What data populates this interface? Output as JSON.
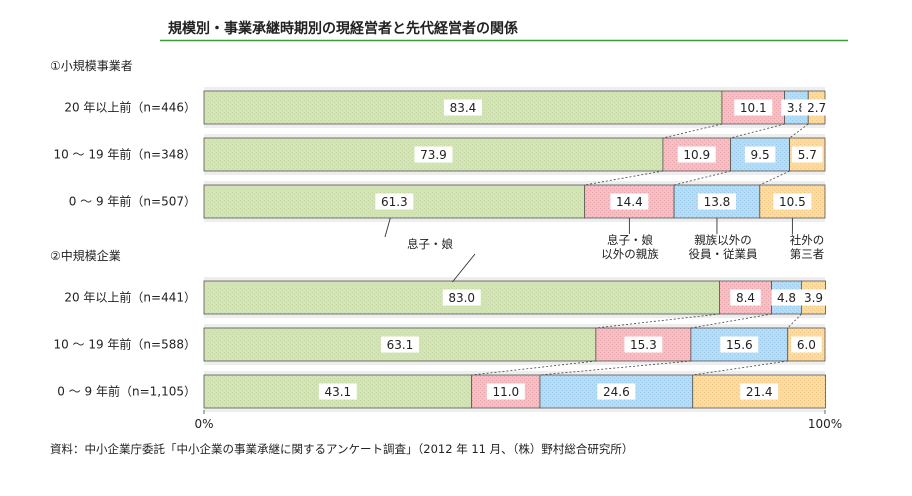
{
  "chart_data": {
    "type": "bar",
    "orientation": "horizontal",
    "stacked": true,
    "percent": true,
    "title": "規模別・事業承継時期別の現経営者と先代経営者の関係",
    "xlim": [
      0,
      100
    ],
    "x_ticks": [
      "0%",
      "100%"
    ],
    "series": [
      {
        "name": "息子・娘",
        "color": "#d4e4b8"
      },
      {
        "name": "息子・娘\n以外の親族",
        "color": "#f4c0c4"
      },
      {
        "name": "親族以外の\n役員・従業員",
        "color": "#b8dcf4"
      },
      {
        "name": "社外の\n第三者",
        "color": "#fcdca4"
      }
    ],
    "groups": [
      {
        "label": "①小規模事業者",
        "rows": [
          {
            "label": "20 年以上前（n=446）",
            "values": [
              83.4,
              10.1,
              3.8,
              2.7
            ],
            "value_labels": [
              "83.4",
              "10.1",
              "3.8",
              "2.7"
            ]
          },
          {
            "label": "10 ～ 19 年前（n=348）",
            "values": [
              73.9,
              10.9,
              9.5,
              5.7
            ],
            "value_labels": [
              "73.9",
              "10.9",
              "9.5",
              "5.7"
            ]
          },
          {
            "label": "0 ～ 9 年前（n=507）",
            "values": [
              61.3,
              14.4,
              13.8,
              10.5
            ],
            "value_labels": [
              "61.3",
              "14.4",
              "13.8",
              "10.5"
            ]
          }
        ]
      },
      {
        "label": "②中規模企業",
        "rows": [
          {
            "label": "20 年以上前（n=441）",
            "values": [
              83.0,
              8.4,
              4.8,
              3.9
            ],
            "value_labels": [
              "83.0",
              "8.4",
              "4.8",
              "3.9"
            ]
          },
          {
            "label": "10 ～ 19 年前（n=588）",
            "values": [
              63.1,
              15.3,
              15.6,
              6.0
            ],
            "value_labels": [
              "63.1",
              "15.3",
              "15.6",
              "6.0"
            ]
          },
          {
            "label": "0 ～ 9 年前（n=1,105）",
            "values": [
              43.1,
              11.0,
              24.6,
              21.4
            ],
            "value_labels": [
              "43.1",
              "11.0",
              "24.6",
              "21.4"
            ]
          }
        ]
      }
    ],
    "source": "資料：中小企業庁委託「中小企業の事業承継に関するアンケート調査」（2012 年 11 月、（株）野村総合研究所）"
  }
}
